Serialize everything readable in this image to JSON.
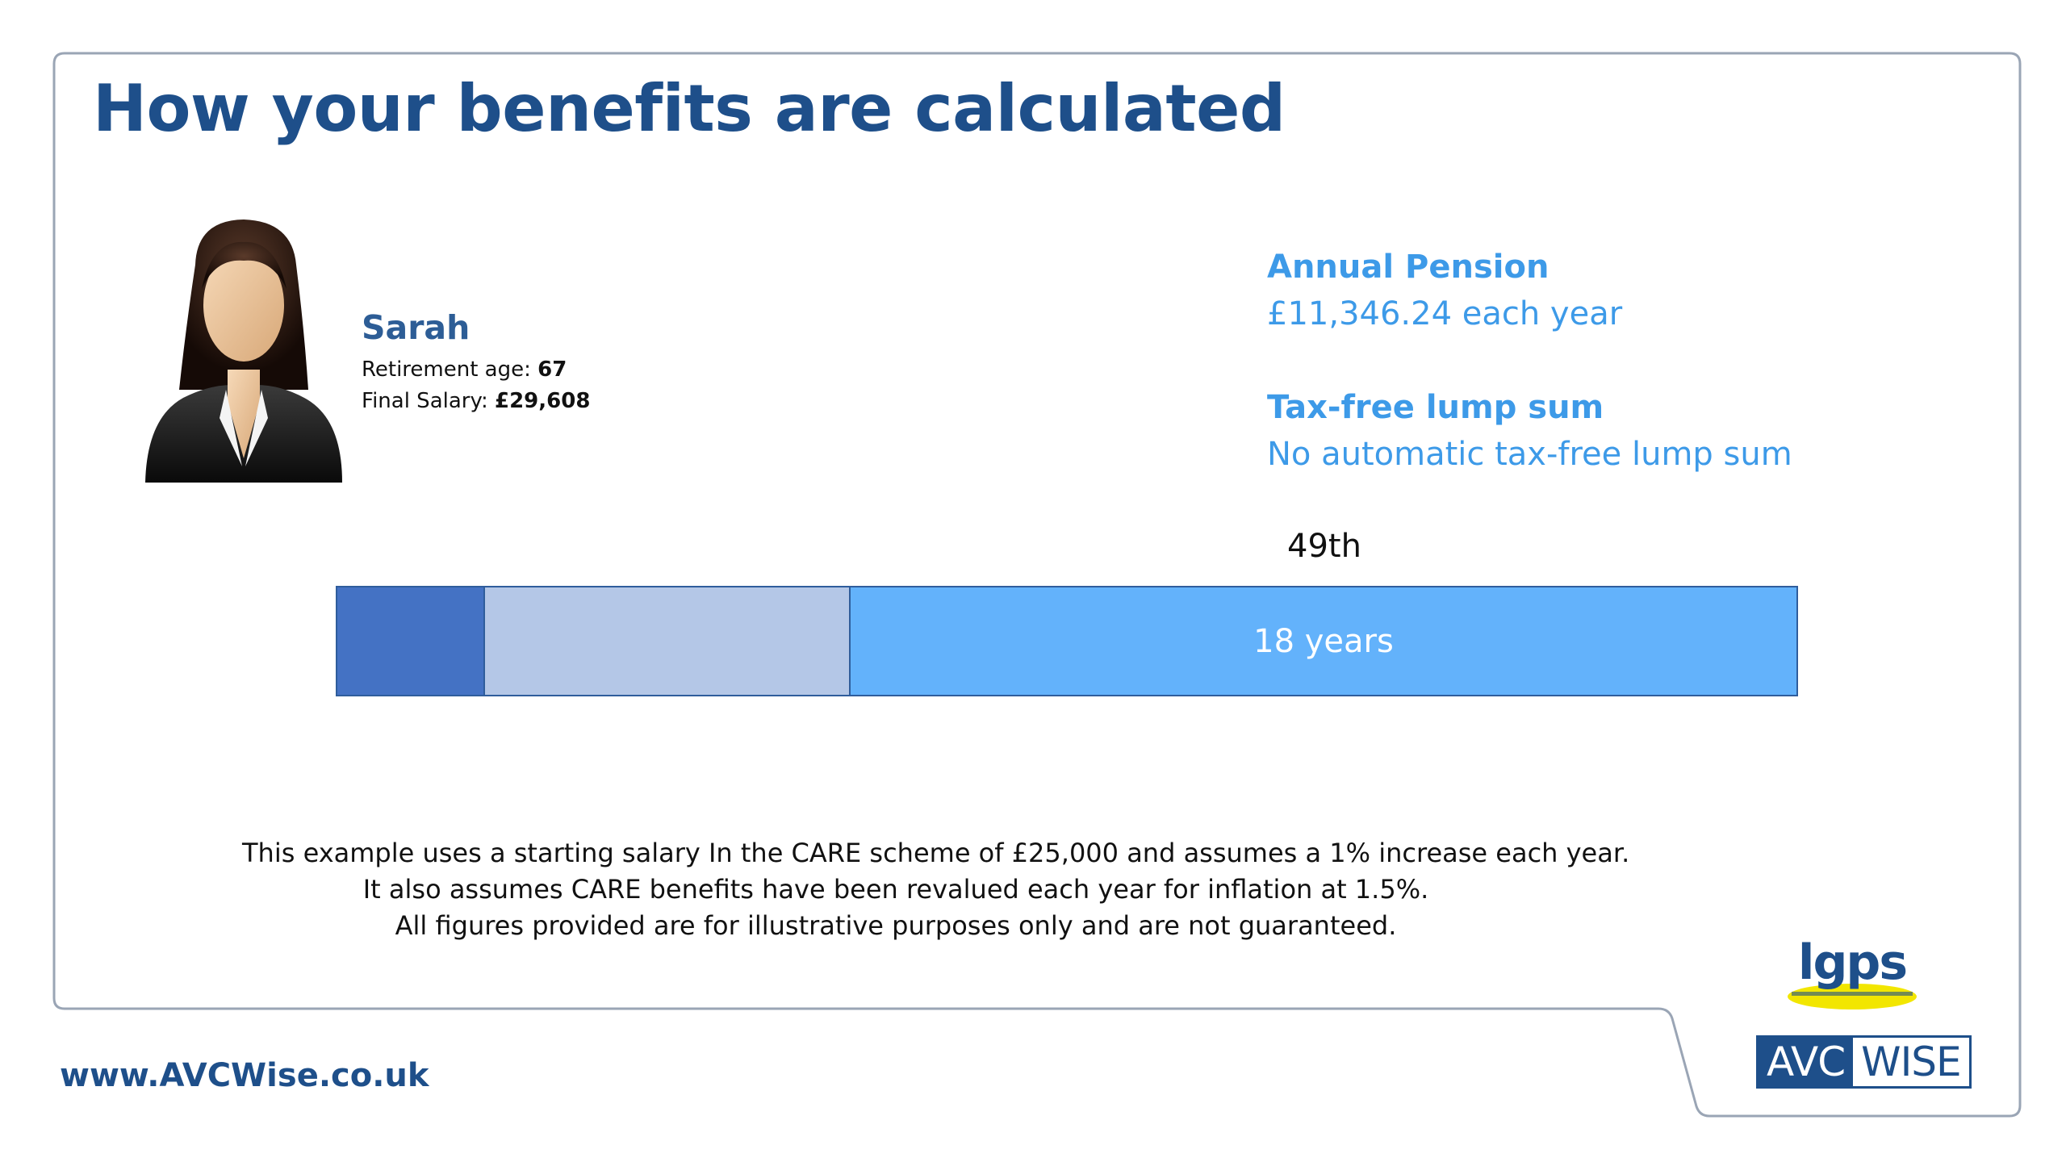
{
  "slide": {
    "title": "How your benefits are calculated"
  },
  "person": {
    "name": "Sarah",
    "retirement_age_label": "Retirement age: ",
    "retirement_age_value": "67",
    "final_salary_label": "Final Salary: ",
    "final_salary_value": "£29,608"
  },
  "summary": {
    "annual_pension_heading": "Annual Pension",
    "annual_pension_value": "£11,346.24 each year",
    "lump_sum_heading": "Tax-free lump sum",
    "lump_sum_value": "No automatic tax-free lump sum"
  },
  "timeline": {
    "marker_label": "49th",
    "segment3_label": "18 years",
    "colors": {
      "segment1": "#4472c4",
      "segment2": "#b4c7e7",
      "segment3": "#63b2fb"
    }
  },
  "notes": [
    "This example uses a starting salary In the CARE scheme of £25,000 and assumes a 1% increase each year.",
    "It also assumes CARE benefits have been revalued each year for inflation at 1.5%.",
    "All figures provided are for illustrative purposes only and are not guaranteed."
  ],
  "footer": {
    "website": "www.AVCWise.co.uk",
    "lgps_logo_text": "lgps",
    "avcwise_logo_left": "AVC",
    "avcwise_logo_right": "WISE"
  },
  "icons": {
    "avatar": "businesswoman-avatar-icon"
  },
  "colors": {
    "title": "#1e4f8a",
    "accent": "#3d9ae8",
    "frame": "#9aa5b5"
  }
}
